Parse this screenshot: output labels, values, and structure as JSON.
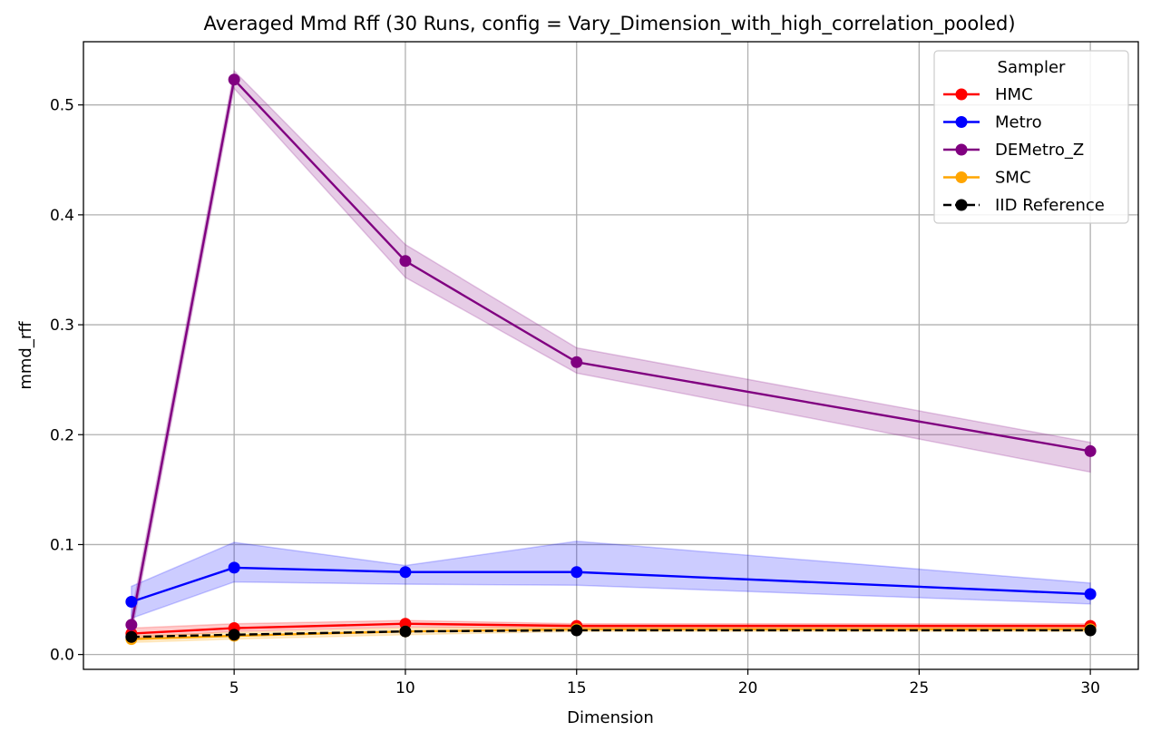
{
  "chart_data": {
    "type": "line",
    "title": "Averaged Mmd Rff (30 Runs, config = Vary_Dimension_with_high_correlation_pooled)",
    "xlabel": "Dimension",
    "ylabel": "mmd_rff",
    "xlim": [
      0.6,
      31.4
    ],
    "ylim": [
      -0.0135,
      0.5575
    ],
    "xticks": [
      5,
      10,
      15,
      20,
      25,
      30
    ],
    "yticks": [
      0.0,
      0.1,
      0.2,
      0.3,
      0.4,
      0.5
    ],
    "xtick_labels": [
      "5",
      "10",
      "15",
      "20",
      "25",
      "30"
    ],
    "ytick_labels": [
      "0.0",
      "0.1",
      "0.2",
      "0.3",
      "0.4",
      "0.5"
    ],
    "grid": true,
    "legend": {
      "title": "Sampler",
      "placement": "upper right"
    },
    "x": [
      2,
      5,
      10,
      15,
      30
    ],
    "series": [
      {
        "name": "HMC",
        "color": "#ff0000",
        "dashed": false,
        "values": [
          0.019,
          0.024,
          0.028,
          0.026,
          0.026
        ],
        "band_low": [
          0.015,
          0.021,
          0.025,
          0.024,
          0.024
        ],
        "band_high": [
          0.024,
          0.028,
          0.031,
          0.028,
          0.028
        ]
      },
      {
        "name": "Metro",
        "color": "#0000ff",
        "dashed": false,
        "values": [
          0.048,
          0.079,
          0.075,
          0.075,
          0.055
        ],
        "band_low": [
          0.033,
          0.066,
          0.064,
          0.063,
          0.046
        ],
        "band_high": [
          0.062,
          0.102,
          0.081,
          0.103,
          0.065
        ]
      },
      {
        "name": "DEMetro_Z",
        "color": "#800080",
        "dashed": false,
        "values": [
          0.027,
          0.523,
          0.358,
          0.266,
          0.185
        ],
        "band_low": [
          0.018,
          0.515,
          0.343,
          0.256,
          0.166
        ],
        "band_high": [
          0.036,
          0.531,
          0.373,
          0.279,
          0.193
        ]
      },
      {
        "name": "SMC",
        "color": "#ffa500",
        "dashed": false,
        "values": [
          0.014,
          0.017,
          0.021,
          0.023,
          0.023
        ],
        "band_low": [
          0.011,
          0.014,
          0.018,
          0.021,
          0.021
        ],
        "band_high": [
          0.017,
          0.02,
          0.024,
          0.025,
          0.025
        ]
      },
      {
        "name": "IID Reference",
        "color": "#000000",
        "dashed": true,
        "values": [
          0.016,
          0.018,
          0.021,
          0.022,
          0.022
        ]
      }
    ]
  }
}
